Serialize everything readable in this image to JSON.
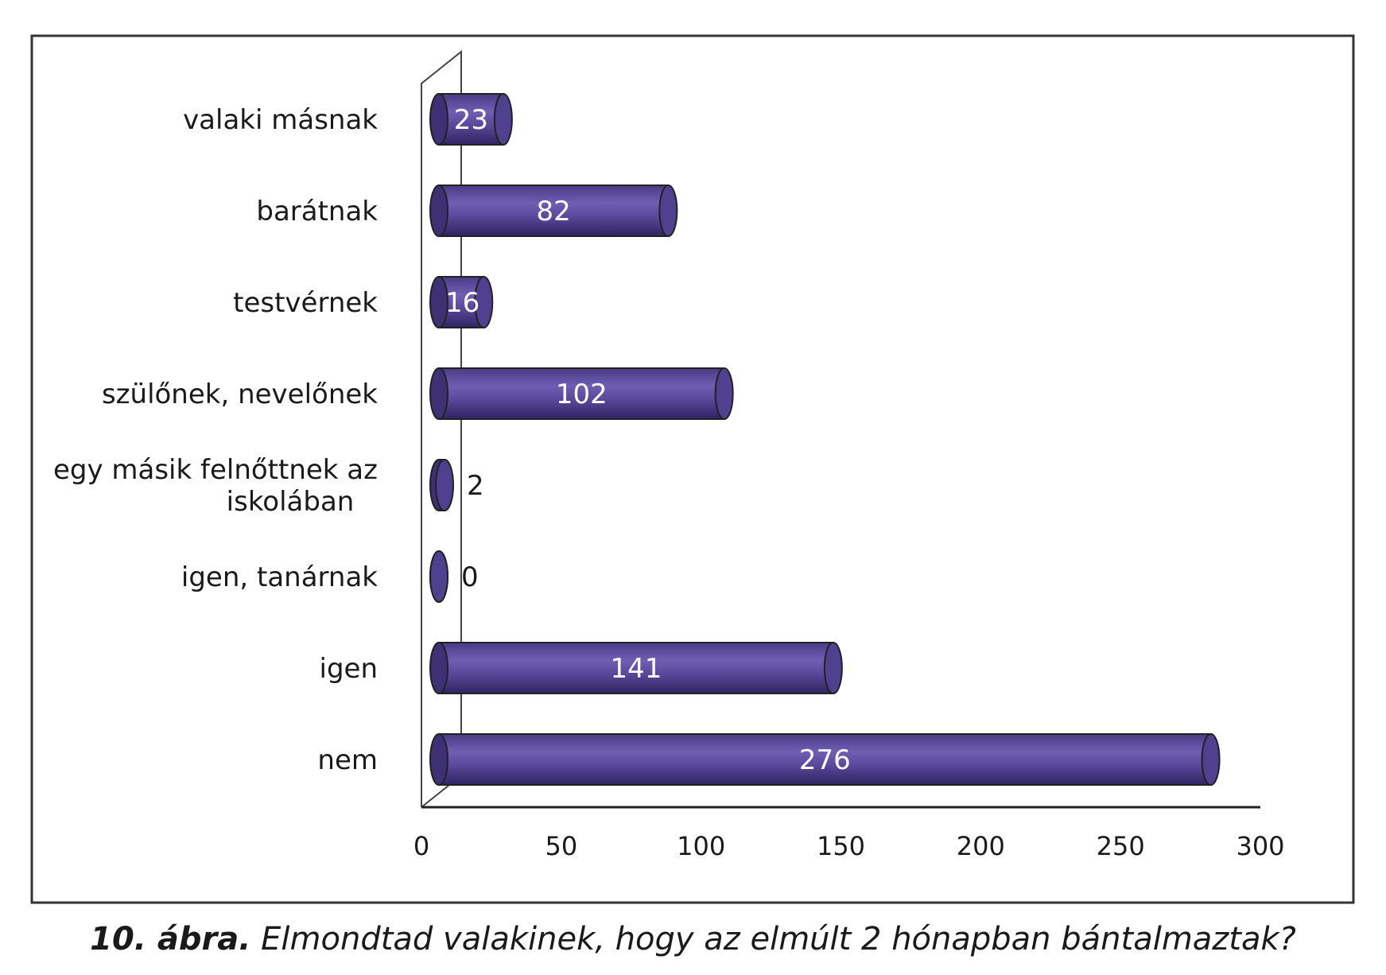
{
  "chart_data": {
    "type": "bar",
    "orientation": "horizontal",
    "categories": [
      "valaki másnak",
      "barátnak",
      "testvérnek",
      "szülőnek, nevelőnek",
      "egy másik felnőttnek az iskolában",
      "igen, tanárnak",
      "igen",
      "nem"
    ],
    "category_lines": [
      [
        "valaki másnak"
      ],
      [
        "barátnak"
      ],
      [
        "testvérnek"
      ],
      [
        "szülőnek, nevelőnek"
      ],
      [
        "egy másik felnőttnek az",
        "iskolában"
      ],
      [
        "igen, tanárnak"
      ],
      [
        "igen"
      ],
      [
        "nem"
      ]
    ],
    "values": [
      23,
      82,
      16,
      102,
      2,
      0,
      141,
      276
    ],
    "data_labels": [
      "23",
      "82",
      "16",
      "102",
      "2",
      "0",
      "141",
      "276"
    ],
    "xticks": [
      "0",
      "50",
      "100",
      "150",
      "200",
      "250",
      "300"
    ],
    "xlim": [
      0,
      300
    ],
    "grid": false,
    "legend": "none",
    "bar_style": "3d-cylinder",
    "bar_color": "#5b4a9c"
  },
  "caption": {
    "number": "10. ábra.",
    "text": "Elmondtad valakinek, hogy az elmúlt 2 hónapban bántalmaztak?"
  }
}
